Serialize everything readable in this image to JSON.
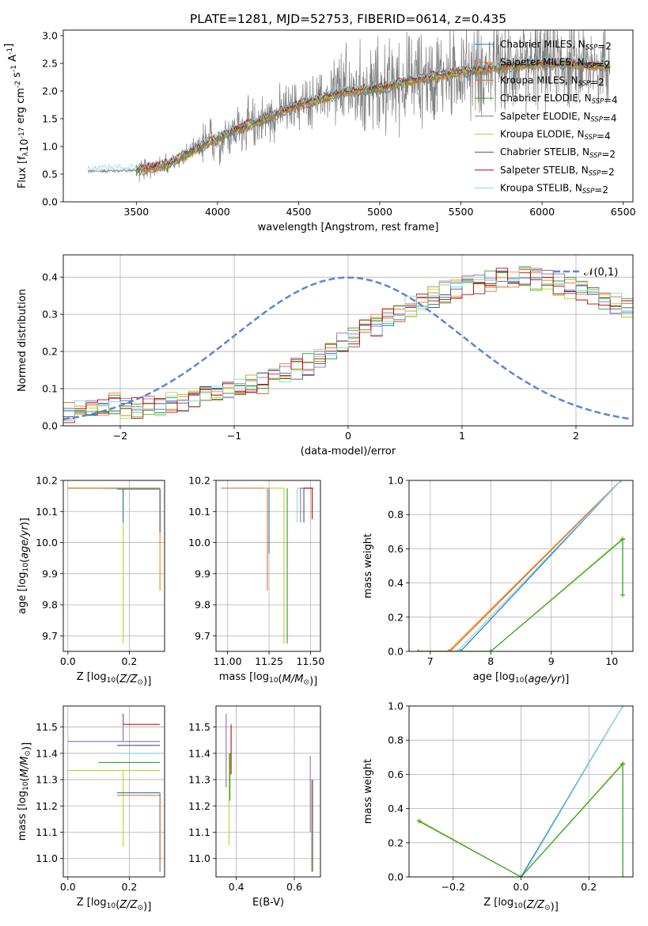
{
  "figure_title": "PLATE=1281, MJD=52753, FIBERID=0614, z=0.435",
  "series_names": [
    "Chabrier MILES, N$_{SSP}$=2",
    "Salpeter MILES, N$_{SSP}$=2",
    "Kroupa MILES, N$_{SSP}$=2",
    "Chabrier ELODIE, N$_{SSP}$=4",
    "Salpeter ELODIE, N$_{SSP}$=4",
    "Kroupa ELODIE, N$_{SSP}$=4",
    "Chabrier STELIB, N$_{SSP}$=2",
    "Salpeter STELIB, N$_{SSP}$=2",
    "Kroupa STELIB, N$_{SSP}$=2"
  ],
  "colors": {
    "series": [
      "#1f77b4",
      "#ff7f0e",
      "#e07030",
      "#2ca02c",
      "#9467bd",
      "#bcd22a",
      "#555555",
      "#c00000",
      "#7fd8e8"
    ],
    "data": "#808080",
    "gauss": "#5b86d6",
    "grid": "#b0b0b0"
  },
  "chart_data": [
    {
      "id": "spectrum",
      "type": "line",
      "title": "PLATE=1281, MJD=52753, FIBERID=0614, z=0.435",
      "xlabel": "wavelength [Angstrom, rest frame]",
      "ylabel": "Flux [f$_\\lambda$10$^{-17}$ erg cm$^{-2}$ s$^{-1}$ A$^{-1}$]",
      "xlim": [
        3050,
        6560
      ],
      "ylim": [
        0,
        3.1
      ],
      "xticks": [
        3500,
        4000,
        4500,
        5000,
        5500,
        6000,
        6500
      ],
      "yticks": [
        0.0,
        0.5,
        1.0,
        1.5,
        2.0,
        2.5,
        3.0
      ],
      "grid": false,
      "legend": "upper right",
      "data_range": [
        3200,
        6420
      ],
      "model_range": [
        3200,
        6420
      ],
      "continuum_x": [
        3200,
        3500,
        3700,
        3900,
        4000,
        4200,
        4500,
        4800,
        5000,
        5200,
        5500,
        5800,
        6000,
        6200,
        6420
      ],
      "continuum_y": [
        0.55,
        0.57,
        0.68,
        1.0,
        1.15,
        1.4,
        1.75,
        2.0,
        2.05,
        2.2,
        2.35,
        2.45,
        2.5,
        2.5,
        2.45
      ]
    },
    {
      "id": "residuals",
      "type": "step",
      "xlabel": "(data-model)/error",
      "ylabel": "Normed distribution",
      "xlim": [
        -2.5,
        2.5
      ],
      "ylim": [
        0,
        0.46
      ],
      "xticks": [
        -2,
        -1,
        0,
        1,
        2
      ],
      "yticks": [
        0.0,
        0.1,
        0.2,
        0.3,
        0.4
      ],
      "grid": true,
      "legend": "upper right",
      "legend_label": "$\\mathcal{N}(0,1)$",
      "bin_width": 0.1,
      "bin_start": -2.5,
      "hist_base": [
        0.035,
        0.045,
        0.05,
        0.055,
        0.06,
        0.045,
        0.05,
        0.055,
        0.055,
        0.06,
        0.065,
        0.075,
        0.08,
        0.085,
        0.09,
        0.1,
        0.11,
        0.115,
        0.13,
        0.14,
        0.155,
        0.165,
        0.185,
        0.2,
        0.22,
        0.24,
        0.255,
        0.27,
        0.29,
        0.3,
        0.32,
        0.33,
        0.345,
        0.36,
        0.37,
        0.38,
        0.385,
        0.39,
        0.395,
        0.4,
        0.4,
        0.395,
        0.39,
        0.38,
        0.37,
        0.36,
        0.35,
        0.34,
        0.33,
        0.32,
        0.31,
        0.3,
        0.29,
        0.275,
        0.26,
        0.25,
        0.235,
        0.22,
        0.205,
        0.19,
        0.175,
        0.16,
        0.145,
        0.13,
        0.12,
        0.11,
        0.1,
        0.095,
        0.09,
        0.08,
        0.075,
        0.07,
        0.065,
        0.06,
        0.055,
        0.05,
        0.045,
        0.04,
        0.04,
        0.035
      ]
    },
    {
      "id": "age_vs_Z",
      "type": "errorbar",
      "xlabel": "Z [log$_{10}$($Z/Z_\\odot$)]",
      "ylabel": "age  [log$_{10}$($age/yr$)]",
      "xlim": [
        -0.015,
        0.315
      ],
      "ylim": [
        9.65,
        10.2
      ],
      "xticks": [
        0.0,
        0.2
      ],
      "yticks": [
        9.7,
        9.8,
        9.9,
        10.0,
        10.1,
        10.2
      ],
      "grid": true,
      "points": [
        {
          "x": 0.18,
          "y": 10.175,
          "xerr": [
            0.18,
            0.12
          ],
          "yerr": [
            0.5,
            0.0
          ],
          "c": 5
        },
        {
          "x": 0.18,
          "y": 10.175,
          "xerr": [
            0.18,
            0.12
          ],
          "yerr": [
            0.11,
            0.0
          ],
          "c": 0
        },
        {
          "x": 0.3,
          "y": 10.175,
          "xerr": [
            0.3,
            0.0
          ],
          "yerr": [
            0.33,
            0.0
          ],
          "c": 1
        },
        {
          "x": 0.3,
          "y": 10.173,
          "xerr": [
            0.18,
            0.0
          ],
          "yerr": [
            0.11,
            0.0
          ],
          "c": 8
        },
        {
          "x": 0.3,
          "y": 10.172,
          "xerr": [
            0.14,
            0.0
          ],
          "yerr": [
            0.14,
            0.0
          ],
          "c": 6
        }
      ]
    },
    {
      "id": "age_vs_mass",
      "type": "errorbar",
      "xlabel": "mass [log$_{10}$($M/M_\\odot$)]",
      "ylabel": "",
      "xlim": [
        10.93,
        11.56
      ],
      "ylim": [
        9.65,
        10.2
      ],
      "xticks": [
        11.0,
        11.25,
        11.5
      ],
      "yticks": [
        9.7,
        9.8,
        9.9,
        10.0,
        10.1,
        10.2
      ],
      "grid": true,
      "points": [
        {
          "x": 11.24,
          "y": 10.175,
          "xerr": [
            0.28,
            0.0
          ],
          "yerr": [
            0.33,
            0.0
          ],
          "c": 2
        },
        {
          "x": 11.25,
          "y": 10.175,
          "xerr": [
            0.0,
            0.0
          ],
          "yerr": [
            0.21,
            0.0
          ],
          "c": 0
        },
        {
          "x": 11.34,
          "y": 10.175,
          "xerr": [
            0.12,
            0.0
          ],
          "yerr": [
            0.5,
            0.0
          ],
          "c": 5
        },
        {
          "x": 11.36,
          "y": 10.175,
          "xerr": [
            0.0,
            0.0
          ],
          "yerr": [
            0.5,
            0.0
          ],
          "c": 3
        },
        {
          "x": 11.42,
          "y": 10.175,
          "xerr": [
            0.0,
            0.05
          ],
          "yerr": [
            0.11,
            0.0
          ],
          "c": 8
        },
        {
          "x": 11.44,
          "y": 10.175,
          "xerr": [
            0.0,
            0.08
          ],
          "yerr": [
            0.11,
            0.0
          ],
          "c": 4
        },
        {
          "x": 11.51,
          "y": 10.175,
          "xerr": [
            0.05,
            0.0
          ],
          "yerr": [
            0.1,
            0.0
          ],
          "c": 7
        },
        {
          "x": 11.46,
          "y": 10.175,
          "xerr": [
            0.0,
            0.0
          ],
          "yerr": [
            0.11,
            0.0
          ],
          "c": 6
        }
      ]
    },
    {
      "id": "weight_vs_age",
      "type": "line",
      "xlabel": "age  [log$_{10}$($age/yr$)]",
      "ylabel": "mass weight",
      "xlim": [
        6.65,
        10.35
      ],
      "ylim": [
        0,
        1
      ],
      "xticks": [
        7,
        8,
        9,
        10
      ],
      "yticks": [
        0.0,
        0.2,
        0.4,
        0.6,
        0.8,
        1.0
      ],
      "grid": true,
      "series": [
        {
          "c": 1,
          "x": [
            6.8,
            7.3,
            10.15
          ],
          "y": [
            0,
            0,
            1.0
          ]
        },
        {
          "c": 2,
          "x": [
            6.8,
            7.33,
            10.15
          ],
          "y": [
            0,
            0,
            1.0
          ]
        },
        {
          "c": 0,
          "x": [
            6.8,
            7.5,
            10.15
          ],
          "y": [
            0,
            0,
            1.0
          ]
        },
        {
          "c": 8,
          "x": [
            6.8,
            7.45,
            10.15
          ],
          "y": [
            0,
            0,
            1.0
          ]
        },
        {
          "c": 5,
          "x": [
            6.8,
            8.0,
            10.18,
            10.18,
            10.18
          ],
          "y": [
            0,
            0,
            0.66,
            0.66,
            0.33
          ]
        },
        {
          "c": 3,
          "x": [
            6.8,
            8.0,
            10.18,
            10.18,
            10.18
          ],
          "y": [
            0,
            0,
            0.655,
            0.655,
            0.33
          ]
        }
      ]
    },
    {
      "id": "mass_vs_Z",
      "type": "errorbar",
      "xlabel": "Z [log$_{10}$($Z/Z_\\odot$)]",
      "ylabel": "mass [log$_{10}$($M/M_\\odot$)]",
      "xlim": [
        -0.015,
        0.315
      ],
      "ylim": [
        10.93,
        11.58
      ],
      "xticks": [
        0.0,
        0.2
      ],
      "yticks": [
        11.0,
        11.1,
        11.2,
        11.3,
        11.4,
        11.5
      ],
      "grid": true,
      "points": [
        {
          "x": 0.18,
          "y": 11.51,
          "xerr": [
            0.0,
            0.12
          ],
          "yerr": [
            0.0,
            0.04
          ],
          "c": 7
        },
        {
          "x": 0.18,
          "y": 11.445,
          "xerr": [
            0.18,
            0.12
          ],
          "yerr": [
            0.0,
            0.1
          ],
          "c": 4
        },
        {
          "x": 0.3,
          "y": 11.43,
          "xerr": [
            0.14,
            0.0
          ],
          "yerr": [
            0.0,
            0.0
          ],
          "c": 6
        },
        {
          "x": 0.3,
          "y": 11.4,
          "xerr": [
            0.14,
            0.0
          ],
          "yerr": [
            0.0,
            0.0
          ],
          "c": 8
        },
        {
          "x": 0.3,
          "y": 11.365,
          "xerr": [
            0.2,
            0.0
          ],
          "yerr": [
            0.0,
            0.0
          ],
          "c": 3
        },
        {
          "x": 0.18,
          "y": 11.335,
          "xerr": [
            0.18,
            0.12
          ],
          "yerr": [
            0.29,
            0.0
          ],
          "c": 5
        },
        {
          "x": 0.3,
          "y": 11.25,
          "xerr": [
            0.14,
            0.0
          ],
          "yerr": [
            0.3,
            0.0
          ],
          "c": 0
        },
        {
          "x": 0.3,
          "y": 11.24,
          "xerr": [
            0.14,
            0.0
          ],
          "yerr": [
            0.28,
            0.0
          ],
          "c": 2
        }
      ]
    },
    {
      "id": "mass_vs_ebv",
      "type": "errorbar",
      "xlabel": "E(B-V)",
      "ylabel": "",
      "xlim": [
        0.33,
        0.69
      ],
      "ylim": [
        10.93,
        11.58
      ],
      "xticks": [
        0.4,
        0.6
      ],
      "yticks": [
        11.0,
        11.1,
        11.2,
        11.3,
        11.4,
        11.5
      ],
      "grid": true,
      "points": [
        {
          "x": 0.365,
          "y": 11.4,
          "xerr": [
            0,
            0
          ],
          "yerr": [
            0.13,
            0.15
          ],
          "c": 4
        },
        {
          "x": 0.375,
          "y": 11.35,
          "xerr": [
            0,
            0
          ],
          "yerr": [
            0.3,
            0.05
          ],
          "c": 5
        },
        {
          "x": 0.378,
          "y": 11.3,
          "xerr": [
            0,
            0
          ],
          "yerr": [
            0.08,
            0.1
          ],
          "c": 3
        },
        {
          "x": 0.382,
          "y": 11.42,
          "xerr": [
            0,
            0
          ],
          "yerr": [
            0.1,
            0.09
          ],
          "c": 7
        },
        {
          "x": 0.655,
          "y": 11.25,
          "xerr": [
            0,
            0
          ],
          "yerr": [
            0.15,
            0.14
          ],
          "c": 4
        },
        {
          "x": 0.66,
          "y": 11.1,
          "xerr": [
            0,
            0
          ],
          "yerr": [
            0.15,
            0.2
          ],
          "c": 1
        },
        {
          "x": 0.663,
          "y": 11.15,
          "xerr": [
            0,
            0
          ],
          "yerr": [
            0.2,
            0.15
          ],
          "c": 0
        }
      ]
    },
    {
      "id": "weight_vs_Z",
      "type": "line",
      "xlabel": "Z [log$_{10}$($Z/Z_\\odot$)]",
      "ylabel": "mass weight",
      "xlim": [
        -0.33,
        0.33
      ],
      "ylim": [
        0,
        1
      ],
      "xticks": [
        -0.2,
        0.0,
        0.2
      ],
      "yticks": [
        0.0,
        0.2,
        0.4,
        0.6,
        0.8,
        1.0
      ],
      "grid": true,
      "series": [
        {
          "c": 0,
          "x": [
            0.0,
            0.0,
            0.3
          ],
          "y": [
            0,
            0,
            1.0
          ]
        },
        {
          "c": 8,
          "x": [
            0.0,
            0.003,
            0.3
          ],
          "y": [
            0,
            0,
            1.0
          ]
        },
        {
          "c": 5,
          "x": [
            -0.3,
            0.0,
            0.3,
            0.3
          ],
          "y": [
            0.33,
            0.0,
            0.665,
            0.0
          ]
        },
        {
          "c": 3,
          "x": [
            -0.3,
            0.0,
            0.3,
            0.3
          ],
          "y": [
            0.325,
            0.0,
            0.66,
            0.0
          ]
        }
      ]
    }
  ]
}
